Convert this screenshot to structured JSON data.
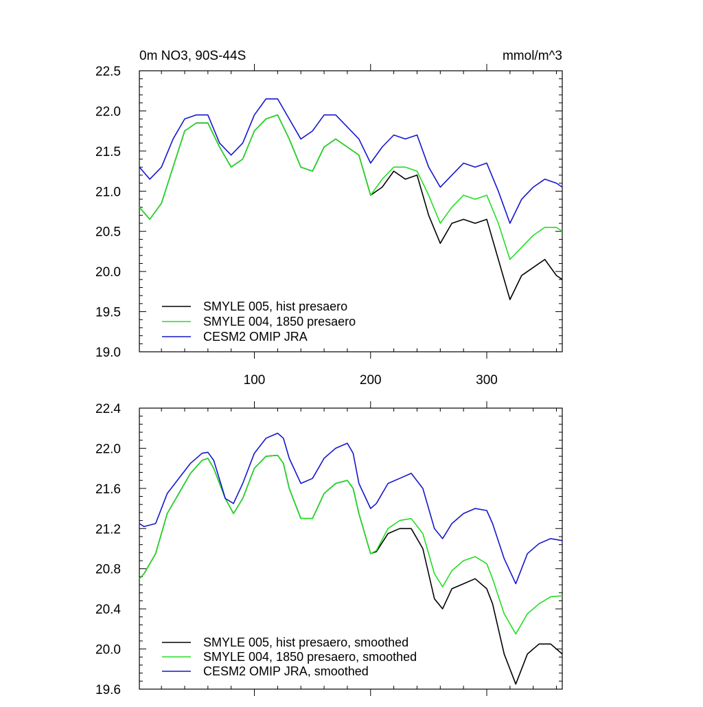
{
  "chart_data": [
    {
      "type": "line",
      "title": "0m NO3, 90S-44S",
      "units": "mmol/m^3",
      "xlim": [
        1,
        365
      ],
      "ylim": [
        19.0,
        22.5
      ],
      "x_ticks": [
        100,
        200,
        300
      ],
      "x_tick_labels": [
        "100",
        "200",
        "300"
      ],
      "y_ticks": [
        19.0,
        19.5,
        20.0,
        20.5,
        21.0,
        21.5,
        22.0,
        22.5
      ],
      "y_tick_labels": [
        "19.0",
        "19.5",
        "20.0",
        "20.5",
        "21.0",
        "21.5",
        "22.0",
        "22.5"
      ],
      "legend_position": "bottom-left",
      "colors": {
        "black": "#000000",
        "green": "#22dd22",
        "blue": "#1515cc"
      },
      "x": [
        1,
        10,
        20,
        30,
        40,
        50,
        60,
        70,
        80,
        90,
        100,
        110,
        120,
        130,
        140,
        150,
        160,
        170,
        180,
        190,
        200,
        210,
        220,
        230,
        240,
        250,
        260,
        270,
        280,
        290,
        300,
        310,
        320,
        330,
        340,
        350,
        360,
        365
      ],
      "series": [
        {
          "name": "SMYLE 005, hist presaero",
          "color": "#000000",
          "values": [
            20.8,
            20.65,
            20.85,
            21.3,
            21.75,
            21.85,
            21.85,
            21.55,
            21.3,
            21.4,
            21.75,
            21.9,
            21.95,
            21.65,
            21.3,
            21.25,
            21.55,
            21.65,
            21.55,
            21.45,
            20.95,
            21.05,
            21.25,
            21.15,
            21.2,
            20.7,
            20.35,
            20.6,
            20.65,
            20.6,
            20.65,
            20.15,
            19.65,
            19.95,
            20.05,
            20.15,
            19.95,
            19.9
          ]
        },
        {
          "name": "SMYLE 004, 1850 presaero",
          "color": "#22dd22",
          "values": [
            20.8,
            20.65,
            20.85,
            21.3,
            21.75,
            21.85,
            21.85,
            21.55,
            21.3,
            21.4,
            21.75,
            21.9,
            21.95,
            21.65,
            21.3,
            21.25,
            21.55,
            21.65,
            21.55,
            21.45,
            20.95,
            21.15,
            21.3,
            21.3,
            21.25,
            20.95,
            20.6,
            20.8,
            20.95,
            20.9,
            20.95,
            20.6,
            20.15,
            20.3,
            20.45,
            20.55,
            20.55,
            20.5
          ]
        },
        {
          "name": "CESM2 OMIP JRA",
          "color": "#1515cc",
          "values": [
            21.3,
            21.15,
            21.3,
            21.65,
            21.9,
            21.95,
            21.95,
            21.6,
            21.45,
            21.6,
            21.95,
            22.15,
            22.15,
            21.9,
            21.65,
            21.75,
            21.95,
            21.95,
            21.8,
            21.65,
            21.35,
            21.55,
            21.7,
            21.65,
            21.7,
            21.3,
            21.05,
            21.2,
            21.35,
            21.3,
            21.35,
            21.0,
            20.6,
            20.9,
            21.05,
            21.15,
            21.1,
            21.05
          ]
        }
      ]
    },
    {
      "type": "line",
      "xlim": [
        1,
        365
      ],
      "ylim": [
        19.6,
        22.4
      ],
      "y_ticks": [
        19.6,
        20.0,
        20.4,
        20.8,
        21.2,
        21.6,
        22.0,
        22.4
      ],
      "y_tick_labels": [
        "19.6",
        "20.0",
        "20.4",
        "20.8",
        "21.2",
        "21.6",
        "22.0",
        "22.4"
      ],
      "legend_position": "bottom-left",
      "x": [
        1,
        5,
        15,
        25,
        35,
        45,
        55,
        60,
        65,
        75,
        82,
        90,
        100,
        110,
        120,
        125,
        130,
        140,
        150,
        160,
        165,
        170,
        180,
        185,
        190,
        200,
        205,
        215,
        225,
        235,
        245,
        255,
        262,
        270,
        280,
        290,
        300,
        305,
        315,
        325,
        335,
        345,
        355,
        365
      ],
      "series": [
        {
          "name": "SMYLE 005, hist presaero, smoothed",
          "color": "#000000",
          "values": [
            20.7,
            20.75,
            20.95,
            21.35,
            21.55,
            21.75,
            21.88,
            21.9,
            21.8,
            21.5,
            21.35,
            21.5,
            21.8,
            21.92,
            21.93,
            21.85,
            21.6,
            21.3,
            21.3,
            21.55,
            21.6,
            21.65,
            21.68,
            21.6,
            21.35,
            20.95,
            20.97,
            21.15,
            21.2,
            21.2,
            21.0,
            20.5,
            20.4,
            20.6,
            20.65,
            20.7,
            20.6,
            20.45,
            19.95,
            19.65,
            19.95,
            20.05,
            20.05,
            19.95
          ]
        },
        {
          "name": "SMYLE 004, 1850 presaero, smoothed",
          "color": "#22dd22",
          "values": [
            20.7,
            20.75,
            20.95,
            21.35,
            21.55,
            21.75,
            21.88,
            21.9,
            21.8,
            21.5,
            21.35,
            21.5,
            21.8,
            21.92,
            21.93,
            21.85,
            21.6,
            21.3,
            21.3,
            21.55,
            21.6,
            21.65,
            21.68,
            21.6,
            21.35,
            20.95,
            20.98,
            21.2,
            21.28,
            21.3,
            21.15,
            20.75,
            20.62,
            20.78,
            20.88,
            20.92,
            20.85,
            20.7,
            20.35,
            20.15,
            20.35,
            20.45,
            20.52,
            20.53
          ]
        },
        {
          "name": "CESM2 OMIP JRA, smoothed",
          "color": "#1515cc",
          "values": [
            21.25,
            21.22,
            21.25,
            21.55,
            21.7,
            21.85,
            21.95,
            21.96,
            21.88,
            21.5,
            21.45,
            21.65,
            21.95,
            22.1,
            22.15,
            22.1,
            21.9,
            21.65,
            21.7,
            21.9,
            21.95,
            22.0,
            22.05,
            21.95,
            21.65,
            21.4,
            21.45,
            21.65,
            21.7,
            21.75,
            21.6,
            21.2,
            21.1,
            21.25,
            21.35,
            21.4,
            21.38,
            21.25,
            20.9,
            20.65,
            20.95,
            21.05,
            21.1,
            21.08
          ]
        }
      ]
    }
  ]
}
